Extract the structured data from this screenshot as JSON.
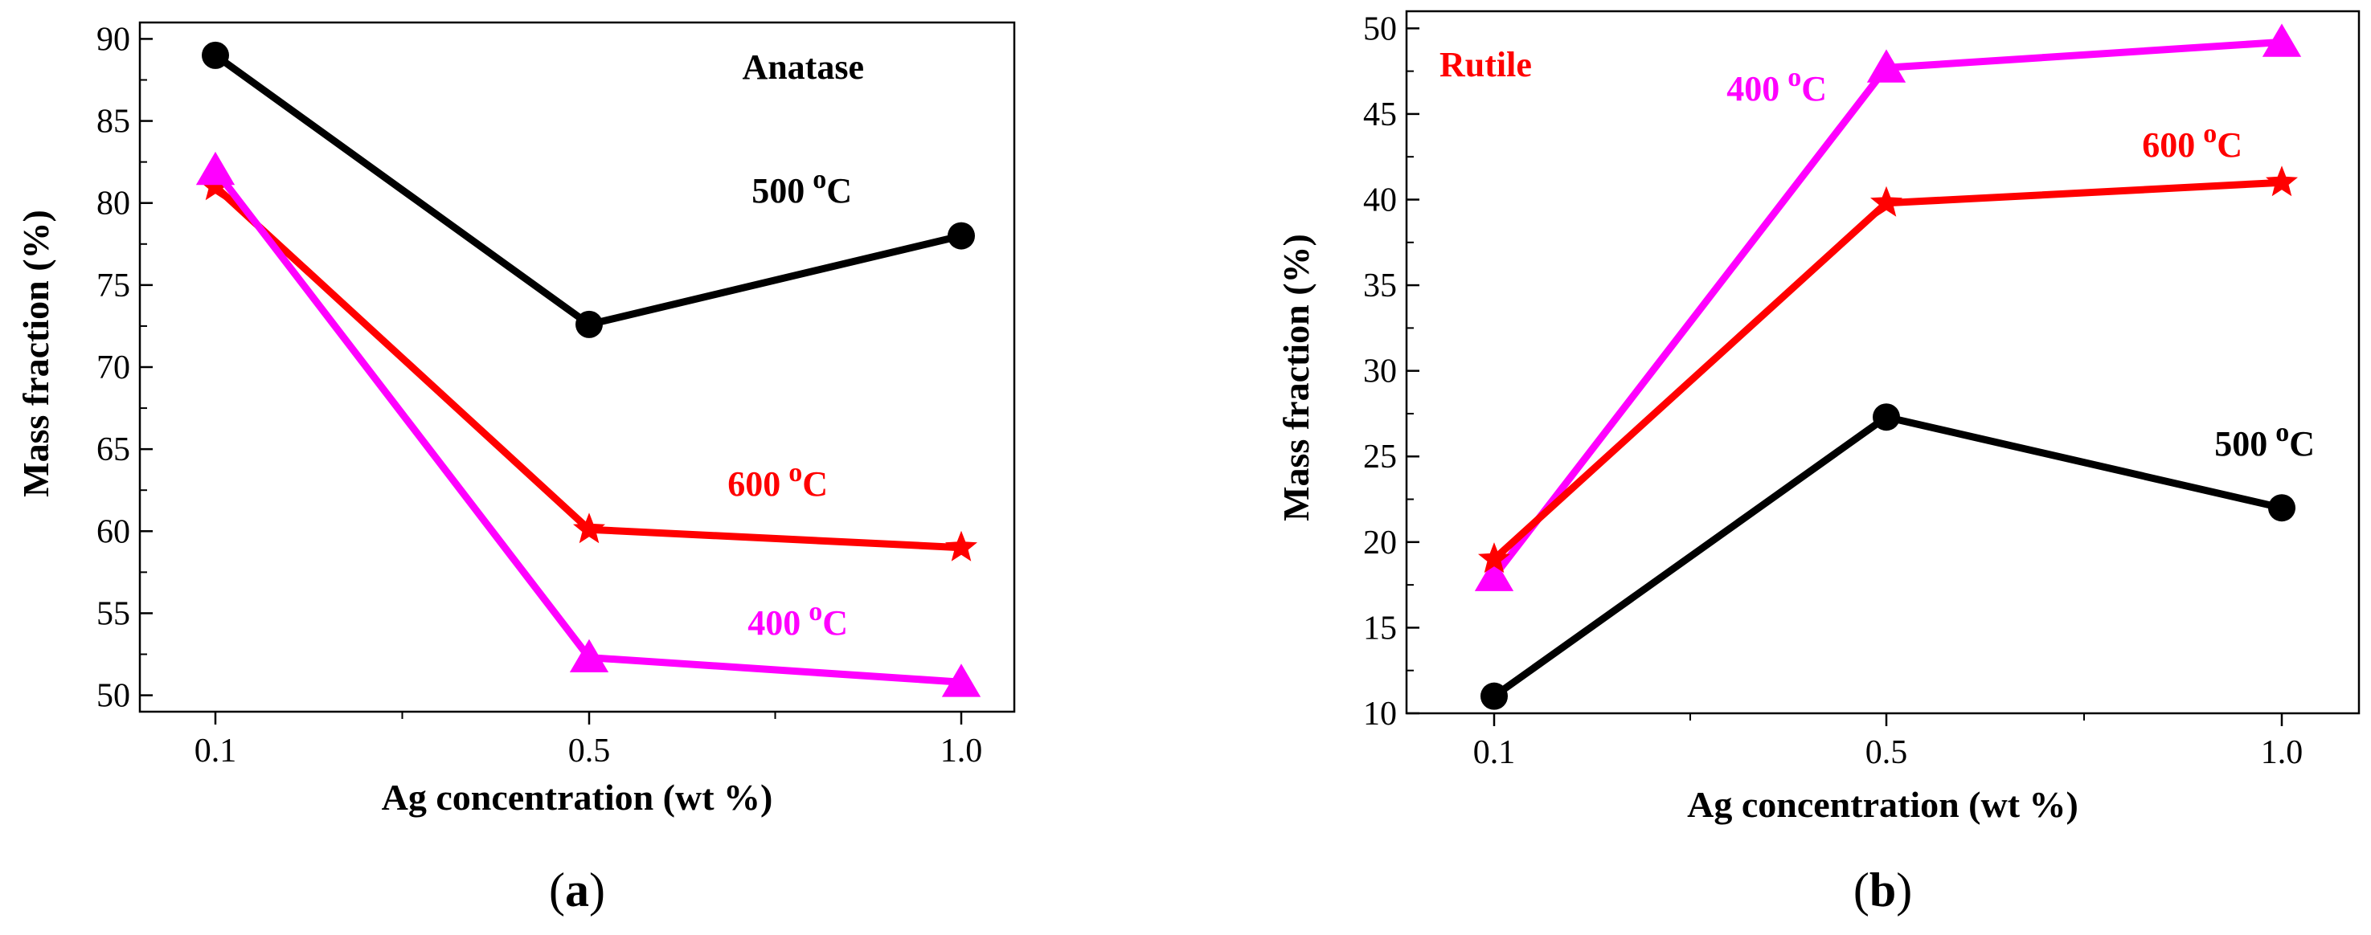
{
  "colors": {
    "black": "#000000",
    "red": "#ff0000",
    "magenta": "#ff00ff"
  },
  "chart_data": [
    {
      "type": "line",
      "panel_label": "Anatase",
      "panel_label_color": "#000000",
      "caption": {
        "open": "(",
        "letter": "a",
        "close": ")"
      },
      "xlabel": "Ag concentration (wt %)",
      "ylabel": "Mass fraction (%)",
      "ylim": [
        49,
        91
      ],
      "yticks": [
        50,
        55,
        60,
        65,
        70,
        75,
        80,
        85,
        90
      ],
      "yminor_step": 2.5,
      "categories": [
        "0.1",
        "0.5",
        "1.0"
      ],
      "series": [
        {
          "name": "500",
          "unit_sup": "o",
          "unit": "C",
          "color": "#000000",
          "marker": "circle",
          "values": [
            89,
            72.6,
            78
          ]
        },
        {
          "name": "600",
          "unit_sup": "o",
          "unit": "C",
          "color": "#ff0000",
          "marker": "star",
          "values": [
            81,
            60.1,
            59
          ]
        },
        {
          "name": "400",
          "unit_sup": "o",
          "unit": "C",
          "color": "#ff00ff",
          "marker": "triangle",
          "values": [
            82,
            52.3,
            50.8
          ]
        }
      ]
    },
    {
      "type": "line",
      "panel_label": "Rutile",
      "panel_label_color": "#ff0000",
      "caption": {
        "open": "(",
        "letter": "b",
        "close": ")"
      },
      "xlabel": "Ag concentration (wt %)",
      "ylabel": "Mass fraction (%)",
      "ylim": [
        10,
        51
      ],
      "yticks": [
        10,
        15,
        20,
        25,
        30,
        35,
        40,
        45,
        50
      ],
      "yminor_step": 2.5,
      "categories": [
        "0.1",
        "0.5",
        "1.0"
      ],
      "series": [
        {
          "name": "400",
          "unit_sup": "o",
          "unit": "C",
          "color": "#ff00ff",
          "marker": "triangle",
          "values": [
            18,
            47.7,
            49.2
          ]
        },
        {
          "name": "600",
          "unit_sup": "o",
          "unit": "C",
          "color": "#ff0000",
          "marker": "star",
          "values": [
            19,
            39.8,
            41
          ]
        },
        {
          "name": "500",
          "unit_sup": "o",
          "unit": "C",
          "color": "#000000",
          "marker": "circle",
          "values": [
            11,
            27.3,
            22
          ]
        }
      ]
    }
  ]
}
